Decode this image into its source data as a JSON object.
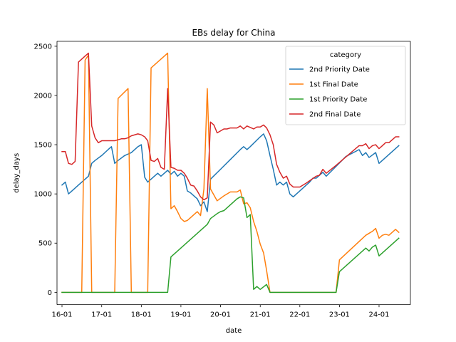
{
  "chart_data": {
    "type": "line",
    "title": "EBs delay for China",
    "xlabel": "date",
    "ylabel": "delay_days",
    "xlim": [
      "2015-11-16",
      "2024-10-16"
    ],
    "ylim": [
      -125,
      2550
    ],
    "xticks": [
      "16-01",
      "17-01",
      "18-01",
      "19-01",
      "20-01",
      "21-01",
      "22-01",
      "23-01",
      "24-01"
    ],
    "yticks": [
      0,
      500,
      1000,
      1500,
      2000,
      2500
    ],
    "grid": false,
    "legend": {
      "title": "category",
      "placement": "top-right"
    },
    "series": [
      {
        "name": "2nd Priority Date",
        "color": "#1f77b4",
        "points": [
          [
            "2016-01-01",
            1090
          ],
          [
            "2016-02-01",
            1120
          ],
          [
            "2016-03-01",
            1000
          ],
          [
            "2016-04-01",
            1030
          ],
          [
            "2016-06-01",
            1090
          ],
          [
            "2016-08-01",
            1150
          ],
          [
            "2016-09-01",
            1180
          ],
          [
            "2016-10-01",
            1310
          ],
          [
            "2016-11-01",
            1340
          ],
          [
            "2017-01-01",
            1390
          ],
          [
            "2017-03-01",
            1450
          ],
          [
            "2017-04-01",
            1480
          ],
          [
            "2017-05-01",
            1310
          ],
          [
            "2017-06-01",
            1340
          ],
          [
            "2017-08-01",
            1390
          ],
          [
            "2017-10-01",
            1420
          ],
          [
            "2017-11-01",
            1450
          ],
          [
            "2017-12-01",
            1480
          ],
          [
            "2018-01-01",
            1500
          ],
          [
            "2018-02-01",
            1170
          ],
          [
            "2018-03-01",
            1120
          ],
          [
            "2018-04-01",
            1150
          ],
          [
            "2018-06-01",
            1210
          ],
          [
            "2018-07-01",
            1180
          ],
          [
            "2018-08-01",
            1210
          ],
          [
            "2018-09-01",
            1240
          ],
          [
            "2018-10-01",
            1200
          ],
          [
            "2018-11-01",
            1230
          ],
          [
            "2018-12-01",
            1180
          ],
          [
            "2019-01-01",
            1210
          ],
          [
            "2019-02-01",
            1180
          ],
          [
            "2019-03-01",
            1030
          ],
          [
            "2019-04-01",
            1010
          ],
          [
            "2019-05-01",
            980
          ],
          [
            "2019-06-01",
            950
          ],
          [
            "2019-07-01",
            880
          ],
          [
            "2019-08-01",
            920
          ],
          [
            "2019-09-01",
            820
          ],
          [
            "2019-10-01",
            1150
          ],
          [
            "2020-01-01",
            1250
          ],
          [
            "2020-04-01",
            1350
          ],
          [
            "2020-07-01",
            1450
          ],
          [
            "2020-08-01",
            1480
          ],
          [
            "2020-09-01",
            1450
          ],
          [
            "2020-10-01",
            1480
          ],
          [
            "2021-01-01",
            1580
          ],
          [
            "2021-02-01",
            1610
          ],
          [
            "2021-03-01",
            1540
          ],
          [
            "2021-04-01",
            1390
          ],
          [
            "2021-05-01",
            1250
          ],
          [
            "2021-06-01",
            1090
          ],
          [
            "2021-07-01",
            1120
          ],
          [
            "2021-08-01",
            1090
          ],
          [
            "2021-09-01",
            1120
          ],
          [
            "2021-10-01",
            1000
          ],
          [
            "2021-11-01",
            970
          ],
          [
            "2022-04-01",
            1120
          ],
          [
            "2022-05-01",
            1160
          ],
          [
            "2022-06-01",
            1160
          ],
          [
            "2022-08-01",
            1220
          ],
          [
            "2022-09-01",
            1180
          ],
          [
            "2022-12-01",
            1280
          ],
          [
            "2023-03-01",
            1380
          ],
          [
            "2023-07-01",
            1450
          ],
          [
            "2023-08-01",
            1390
          ],
          [
            "2023-09-01",
            1420
          ],
          [
            "2023-10-01",
            1370
          ],
          [
            "2023-12-01",
            1420
          ],
          [
            "2024-01-01",
            1310
          ],
          [
            "2024-07-01",
            1490
          ]
        ]
      },
      {
        "name": "1st Final Date",
        "color": "#ff7f0e",
        "points": [
          [
            "2016-01-01",
            0
          ],
          [
            "2016-07-01",
            0
          ],
          [
            "2016-08-01",
            2360
          ],
          [
            "2016-09-01",
            2410
          ],
          [
            "2016-10-01",
            0
          ],
          [
            "2017-05-01",
            0
          ],
          [
            "2017-06-01",
            1970
          ],
          [
            "2017-09-01",
            2070
          ],
          [
            "2017-10-01",
            0
          ],
          [
            "2018-03-01",
            0
          ],
          [
            "2018-04-01",
            2280
          ],
          [
            "2018-09-01",
            2430
          ],
          [
            "2018-10-01",
            850
          ],
          [
            "2018-11-01",
            880
          ],
          [
            "2018-12-01",
            820
          ],
          [
            "2019-01-01",
            750
          ],
          [
            "2019-02-01",
            720
          ],
          [
            "2019-03-01",
            730
          ],
          [
            "2019-04-01",
            760
          ],
          [
            "2019-05-01",
            790
          ],
          [
            "2019-06-01",
            820
          ],
          [
            "2019-07-01",
            780
          ],
          [
            "2019-08-01",
            1050
          ],
          [
            "2019-09-01",
            2070
          ],
          [
            "2019-10-01",
            1050
          ],
          [
            "2019-12-01",
            930
          ],
          [
            "2020-02-01",
            980
          ],
          [
            "2020-04-01",
            1020
          ],
          [
            "2020-06-01",
            1020
          ],
          [
            "2020-07-01",
            1040
          ],
          [
            "2020-08-01",
            900
          ],
          [
            "2020-09-01",
            910
          ],
          [
            "2020-10-01",
            860
          ],
          [
            "2020-11-01",
            720
          ],
          [
            "2020-12-01",
            620
          ],
          [
            "2021-01-01",
            490
          ],
          [
            "2021-02-01",
            400
          ],
          [
            "2021-03-01",
            220
          ],
          [
            "2021-04-01",
            0
          ],
          [
            "2022-12-01",
            0
          ],
          [
            "2023-01-01",
            330
          ],
          [
            "2023-09-01",
            580
          ],
          [
            "2023-10-01",
            600
          ],
          [
            "2023-11-01",
            620
          ],
          [
            "2023-12-01",
            650
          ],
          [
            "2024-01-01",
            550
          ],
          [
            "2024-02-01",
            580
          ],
          [
            "2024-03-01",
            590
          ],
          [
            "2024-04-01",
            580
          ],
          [
            "2024-06-01",
            640
          ],
          [
            "2024-07-01",
            610
          ]
        ]
      },
      {
        "name": "1st Priority Date",
        "color": "#2ca02c",
        "points": [
          [
            "2016-01-01",
            0
          ],
          [
            "2018-09-01",
            0
          ],
          [
            "2018-10-01",
            360
          ],
          [
            "2019-09-01",
            690
          ],
          [
            "2019-10-01",
            750
          ],
          [
            "2019-12-01",
            800
          ],
          [
            "2020-01-01",
            820
          ],
          [
            "2020-02-01",
            830
          ],
          [
            "2020-06-01",
            950
          ],
          [
            "2020-07-01",
            970
          ],
          [
            "2020-08-01",
            960
          ],
          [
            "2020-09-01",
            760
          ],
          [
            "2020-10-01",
            790
          ],
          [
            "2020-11-01",
            30
          ],
          [
            "2020-12-01",
            60
          ],
          [
            "2021-01-01",
            30
          ],
          [
            "2021-03-01",
            80
          ],
          [
            "2021-04-01",
            0
          ],
          [
            "2022-12-01",
            0
          ],
          [
            "2023-01-01",
            210
          ],
          [
            "2023-09-01",
            450
          ],
          [
            "2023-10-01",
            420
          ],
          [
            "2023-11-01",
            460
          ],
          [
            "2023-12-01",
            480
          ],
          [
            "2024-01-01",
            370
          ],
          [
            "2024-07-01",
            550
          ]
        ]
      },
      {
        "name": "2nd Final Date",
        "color": "#d62728",
        "points": [
          [
            "2016-01-01",
            1430
          ],
          [
            "2016-02-01",
            1430
          ],
          [
            "2016-03-01",
            1310
          ],
          [
            "2016-04-01",
            1300
          ],
          [
            "2016-05-01",
            1330
          ],
          [
            "2016-06-01",
            2340
          ],
          [
            "2016-08-01",
            2400
          ],
          [
            "2016-09-01",
            2430
          ],
          [
            "2016-10-01",
            1690
          ],
          [
            "2016-11-01",
            1570
          ],
          [
            "2016-12-01",
            1520
          ],
          [
            "2017-01-01",
            1540
          ],
          [
            "2017-05-01",
            1540
          ],
          [
            "2017-07-01",
            1560
          ],
          [
            "2017-08-01",
            1560
          ],
          [
            "2017-09-01",
            1570
          ],
          [
            "2017-10-01",
            1590
          ],
          [
            "2017-11-01",
            1600
          ],
          [
            "2017-12-01",
            1610
          ],
          [
            "2018-01-01",
            1600
          ],
          [
            "2018-02-01",
            1580
          ],
          [
            "2018-03-01",
            1540
          ],
          [
            "2018-04-01",
            1340
          ],
          [
            "2018-05-01",
            1330
          ],
          [
            "2018-06-01",
            1360
          ],
          [
            "2018-07-01",
            1270
          ],
          [
            "2018-08-01",
            1250
          ],
          [
            "2018-09-01",
            2070
          ],
          [
            "2018-10-01",
            1270
          ],
          [
            "2018-11-01",
            1260
          ],
          [
            "2018-12-01",
            1240
          ],
          [
            "2019-01-01",
            1240
          ],
          [
            "2019-02-01",
            1210
          ],
          [
            "2019-03-01",
            1160
          ],
          [
            "2019-04-01",
            1090
          ],
          [
            "2019-05-01",
            1080
          ],
          [
            "2019-06-01",
            1030
          ],
          [
            "2019-07-01",
            970
          ],
          [
            "2019-08-01",
            940
          ],
          [
            "2019-09-01",
            960
          ],
          [
            "2019-10-01",
            1730
          ],
          [
            "2019-11-01",
            1700
          ],
          [
            "2019-12-01",
            1620
          ],
          [
            "2020-01-01",
            1640
          ],
          [
            "2020-02-01",
            1660
          ],
          [
            "2020-03-01",
            1660
          ],
          [
            "2020-04-01",
            1670
          ],
          [
            "2020-06-01",
            1670
          ],
          [
            "2020-07-01",
            1690
          ],
          [
            "2020-08-01",
            1660
          ],
          [
            "2020-09-01",
            1690
          ],
          [
            "2020-11-01",
            1660
          ],
          [
            "2020-12-01",
            1680
          ],
          [
            "2021-01-01",
            1680
          ],
          [
            "2021-02-01",
            1700
          ],
          [
            "2021-03-01",
            1670
          ],
          [
            "2021-04-01",
            1600
          ],
          [
            "2021-05-01",
            1500
          ],
          [
            "2021-06-01",
            1300
          ],
          [
            "2021-07-01",
            1220
          ],
          [
            "2021-08-01",
            1160
          ],
          [
            "2021-09-01",
            1180
          ],
          [
            "2021-10-01",
            1100
          ],
          [
            "2021-11-01",
            1070
          ],
          [
            "2022-01-01",
            1070
          ],
          [
            "2022-03-01",
            1110
          ],
          [
            "2022-06-01",
            1180
          ],
          [
            "2022-07-01",
            1190
          ],
          [
            "2022-08-01",
            1250
          ],
          [
            "2022-09-01",
            1210
          ],
          [
            "2022-12-01",
            1290
          ],
          [
            "2023-07-01",
            1490
          ],
          [
            "2023-08-01",
            1490
          ],
          [
            "2023-09-01",
            1510
          ],
          [
            "2023-10-01",
            1460
          ],
          [
            "2023-11-01",
            1490
          ],
          [
            "2023-12-01",
            1500
          ],
          [
            "2024-01-01",
            1460
          ],
          [
            "2024-02-01",
            1490
          ],
          [
            "2024-03-01",
            1520
          ],
          [
            "2024-04-01",
            1520
          ],
          [
            "2024-06-01",
            1580
          ],
          [
            "2024-07-01",
            1580
          ]
        ]
      }
    ]
  }
}
